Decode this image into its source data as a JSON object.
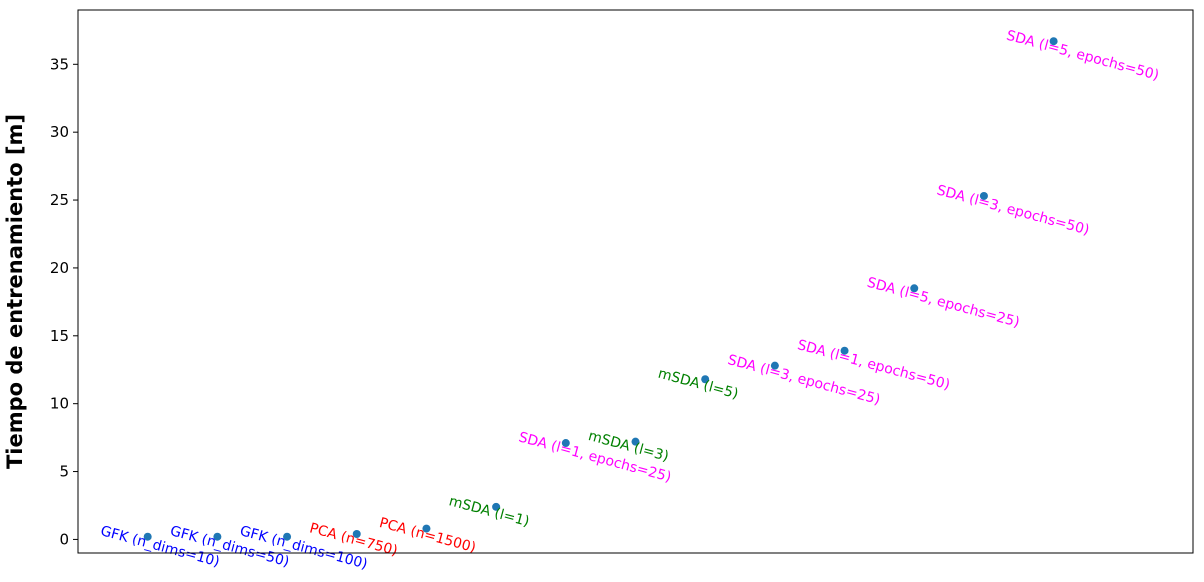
{
  "chart_data": {
    "type": "scatter",
    "title": "",
    "xlabel": "",
    "ylabel": "Tiempo de entrenamiento [m]",
    "ylim": [
      -1,
      39
    ],
    "yticks": [
      0,
      5,
      10,
      15,
      20,
      25,
      30,
      35
    ],
    "grid": false,
    "point_color": "#1f77b4",
    "points": [
      {
        "label": "GFK (n_dims=10)",
        "x": 1,
        "y": 0.2,
        "color": "#0000ff"
      },
      {
        "label": "GFK (n_dims=50)",
        "x": 2,
        "y": 0.2,
        "color": "#0000ff"
      },
      {
        "label": "GFK (n_dims=100)",
        "x": 3,
        "y": 0.2,
        "color": "#0000ff"
      },
      {
        "label": "PCA (n=750)",
        "x": 4,
        "y": 0.4,
        "color": "#ff0000"
      },
      {
        "label": "PCA (n=1500)",
        "x": 5,
        "y": 0.8,
        "color": "#ff0000"
      },
      {
        "label": "mSDA (l=1)",
        "x": 6,
        "y": 2.4,
        "color": "#008000"
      },
      {
        "label": "SDA (l=1, epochs=25)",
        "x": 7,
        "y": 7.1,
        "color": "#ff00ff"
      },
      {
        "label": "mSDA (l=3)",
        "x": 8,
        "y": 7.2,
        "color": "#008000"
      },
      {
        "label": "mSDA (l=5)",
        "x": 9,
        "y": 11.8,
        "color": "#008000"
      },
      {
        "label": "SDA (l=3, epochs=25)",
        "x": 10,
        "y": 12.8,
        "color": "#ff00ff"
      },
      {
        "label": "SDA (l=1, epochs=50)",
        "x": 11,
        "y": 13.9,
        "color": "#ff00ff"
      },
      {
        "label": "SDA (l=5, epochs=25)",
        "x": 12,
        "y": 18.5,
        "color": "#ff00ff"
      },
      {
        "label": "SDA (l=3, epochs=50)",
        "x": 13,
        "y": 25.3,
        "color": "#ff00ff"
      },
      {
        "label": "SDA (l=5, epochs=50)",
        "x": 14,
        "y": 36.7,
        "color": "#ff00ff"
      }
    ],
    "xlim": [
      0,
      16
    ]
  }
}
